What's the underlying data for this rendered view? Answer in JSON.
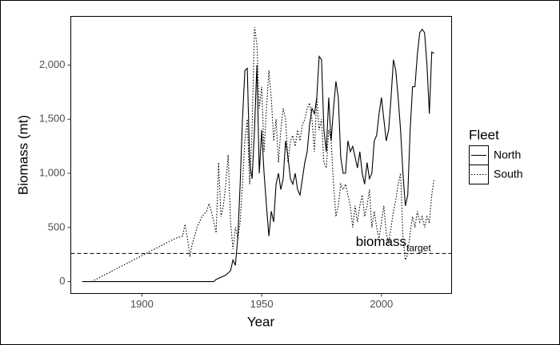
{
  "chart_data": {
    "type": "line",
    "x_label": "Year",
    "y_label": "Biomass (mt)",
    "legend_title": "Fleet",
    "xlim": [
      1870.3,
      2029.3
    ],
    "xticks": [
      1900,
      1950,
      2000
    ],
    "ylim": [
      -110,
      2450
    ],
    "yticks": [
      0,
      500,
      {
        "value": 1000,
        "label": "1,000"
      },
      {
        "value": 1500,
        "label": "1,500"
      },
      {
        "value": 2000,
        "label": "2,000"
      }
    ],
    "hline": {
      "value": 260,
      "label": "biomass",
      "subscript": "target",
      "dash": "dashed"
    },
    "series": [
      {
        "name": "North",
        "color": "#000000",
        "dash": "solid",
        "x": [
          1875,
          1930,
          1931,
          1935,
          1937,
          1938,
          1939,
          1940,
          1941,
          1942,
          1943,
          1944,
          1945,
          1946,
          1947,
          1948,
          1949,
          1950,
          1951,
          1952,
          1953,
          1954,
          1955,
          1956,
          1957,
          1958,
          1959,
          1960,
          1961,
          1962,
          1963,
          1964,
          1965,
          1966,
          1967,
          1968,
          1969,
          1970,
          1971,
          1972,
          1973,
          1974,
          1975,
          1976,
          1977,
          1978,
          1979,
          1980,
          1981,
          1982,
          1983,
          1984,
          1985,
          1986,
          1987,
          1988,
          1989,
          1990,
          1991,
          1992,
          1993,
          1994,
          1995,
          1996,
          1997,
          1998,
          1999,
          2000,
          2001,
          2002,
          2003,
          2004,
          2005,
          2006,
          2007,
          2008,
          2009,
          2010,
          2011,
          2012,
          2013,
          2014,
          2015,
          2016,
          2017,
          2018,
          2019,
          2020,
          2021,
          2022
        ],
        "values": [
          0,
          0,
          20,
          60,
          100,
          200,
          150,
          400,
          900,
          1500,
          1950,
          1970,
          1100,
          950,
          1400,
          2000,
          1000,
          1400,
          1000,
          700,
          420,
          650,
          550,
          900,
          1000,
          850,
          950,
          1300,
          1150,
          950,
          900,
          1000,
          850,
          800,
          950,
          1100,
          1200,
          1450,
          1600,
          1550,
          1700,
          2080,
          2050,
          1400,
          1200,
          1700,
          1300,
          1600,
          1850,
          1700,
          1150,
          1000,
          1000,
          1300,
          1200,
          1250,
          1150,
          1050,
          1200,
          1000,
          900,
          1100,
          950,
          1000,
          1300,
          1350,
          1550,
          1700,
          1500,
          1300,
          1400,
          1700,
          2050,
          1950,
          1700,
          1400,
          1000,
          700,
          800,
          1400,
          1800,
          1800,
          2100,
          2300,
          2330,
          2300,
          2000,
          1550,
          2120,
          2110
        ]
      },
      {
        "name": "South",
        "color": "#000000",
        "dash": "dotted",
        "x": [
          1879,
          1914,
          1917,
          1918,
          1919,
          1920,
          1921,
          1922,
          1923,
          1925,
          1927,
          1928,
          1929,
          1930,
          1931,
          1932,
          1933,
          1934,
          1935,
          1936,
          1937,
          1938,
          1939,
          1940,
          1941,
          1942,
          1943,
          1944,
          1945,
          1946,
          1947,
          1948,
          1949,
          1950,
          1951,
          1952,
          1953,
          1954,
          1955,
          1956,
          1957,
          1958,
          1959,
          1960,
          1961,
          1962,
          1963,
          1964,
          1965,
          1966,
          1967,
          1968,
          1969,
          1970,
          1971,
          1972,
          1973,
          1974,
          1975,
          1976,
          1977,
          1978,
          1979,
          1980,
          1981,
          1982,
          1983,
          1984,
          1985,
          1986,
          1987,
          1988,
          1989,
          1990,
          1991,
          1992,
          1993,
          1994,
          1995,
          1996,
          1997,
          1998,
          1999,
          2000,
          2001,
          2002,
          2003,
          2004,
          2005,
          2006,
          2007,
          2008,
          2009,
          2010,
          2011,
          2012,
          2013,
          2014,
          2015,
          2016,
          2017,
          2018,
          2019,
          2020,
          2021,
          2022
        ],
        "values": [
          0,
          400,
          420,
          530,
          400,
          230,
          350,
          420,
          500,
          600,
          650,
          720,
          650,
          550,
          450,
          1100,
          600,
          700,
          900,
          1170,
          550,
          300,
          500,
          400,
          550,
          900,
          1300,
          1500,
          900,
          1400,
          2350,
          2200,
          1600,
          1800,
          1200,
          1600,
          1950,
          1700,
          1300,
          1500,
          1100,
          1400,
          1600,
          1500,
          1100,
          1300,
          1350,
          1250,
          1400,
          1300,
          1450,
          1500,
          1600,
          1650,
          1500,
          1200,
          1700,
          1400,
          1500,
          1100,
          1050,
          1400,
          1300,
          900,
          600,
          700,
          900,
          850,
          900,
          800,
          700,
          500,
          700,
          550,
          700,
          800,
          600,
          700,
          850,
          500,
          650,
          500,
          400,
          550,
          700,
          450,
          350,
          500,
          650,
          750,
          900,
          1000,
          400,
          200,
          250,
          450,
          600,
          500,
          650,
          550,
          600,
          500,
          600,
          550,
          800,
          950
        ]
      }
    ]
  }
}
